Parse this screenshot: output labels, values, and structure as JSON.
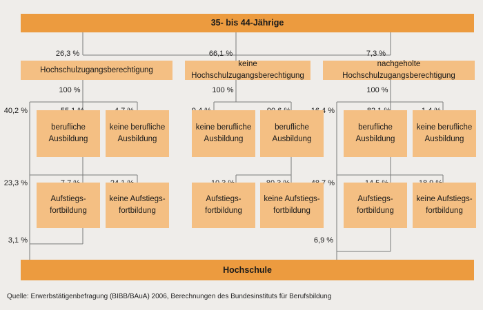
{
  "top": "35- bis 44-Jährige",
  "bottom": "Hochschule",
  "source": "Quelle: Erwerbstätigenbefragung (BIBB/BAuA) 2006, Berechnungen des Bundesinstituts für Berufsbildung",
  "groups": [
    {
      "label": "Hochschulzugangsberechtigung",
      "share": "26,3 %",
      "all": "100 %",
      "direct_hochschule": "40,2 %",
      "ausbildung": {
        "label": "berufliche\nAusbildung",
        "pct": "55,1 %"
      },
      "keine_ausbildung": {
        "label": "keine berufliche\nAusbildung",
        "pct": "4,7 %"
      },
      "after_ausbildung_hochschule": "23,3 %",
      "fortbildung": {
        "label": "Aufstiegs-\nfortbildung",
        "pct": "7,7 %"
      },
      "keine_fortbildung": {
        "label": "keine Aufstiegs-\nfortbildung",
        "pct": "24,1 %"
      },
      "after_fortbildung_hochschule": "3,1 %"
    },
    {
      "label": "keine Hochschulzugangsberechtigung",
      "share": "66,1 %",
      "all": "100 %",
      "ausbildung": {
        "label": "berufliche\nAusbildung",
        "pct": "90,6 %"
      },
      "keine_ausbildung": {
        "label": "keine berufliche\nAusbildung",
        "pct": "9,4 %"
      },
      "fortbildung": {
        "label": "Aufstiegs-\nfortbildung",
        "pct": "10,3 %"
      },
      "keine_fortbildung": {
        "label": "keine Aufstiegs-\nfortbildung",
        "pct": "80,3 %"
      }
    },
    {
      "label": "nachgeholte Hochschulzugangsberechtigung",
      "share": "7,3 %",
      "all": "100 %",
      "direct_hochschule": "16,4 %",
      "ausbildung": {
        "label": "berufliche\nAusbildung",
        "pct": "82,1 %"
      },
      "keine_ausbildung": {
        "label": "keine berufliche\nAusbildung",
        "pct": "1,4 %"
      },
      "after_ausbildung_hochschule": "48,7 %",
      "fortbildung": {
        "label": "Aufstiegs-\nfortbildung",
        "pct": "14,5 %"
      },
      "keine_fortbildung": {
        "label": "keine Aufstiegs-\nfortbildung",
        "pct": "18,9 %"
      },
      "after_fortbildung_hochschule": "6,9 %"
    }
  ]
}
